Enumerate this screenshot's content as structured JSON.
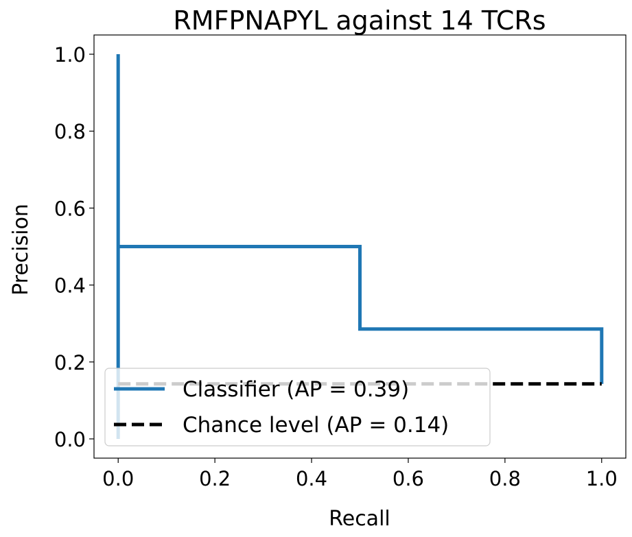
{
  "chart_data": {
    "type": "line",
    "title": "RMFPNAPYL against 14 TCRs",
    "xlabel": "Recall",
    "ylabel": "Precision",
    "xlim": [
      -0.05,
      1.05
    ],
    "ylim": [
      -0.05,
      1.05
    ],
    "xticks": [
      0.0,
      0.2,
      0.4,
      0.6,
      0.8,
      1.0
    ],
    "xtick_labels": [
      "0.0",
      "0.2",
      "0.4",
      "0.6",
      "0.8",
      "1.0"
    ],
    "yticks": [
      0.0,
      0.2,
      0.4,
      0.6,
      0.8,
      1.0
    ],
    "ytick_labels": [
      "0.0",
      "0.2",
      "0.4",
      "0.6",
      "0.8",
      "1.0"
    ],
    "grid": false,
    "legend_position": "lower-left",
    "series": [
      {
        "name": "Classifier (AP = 0.39)",
        "color": "#1f77b4",
        "style": "solid",
        "step": true,
        "x": [
          0.0,
          0.0,
          0.0,
          0.5,
          0.5,
          1.0,
          1.0
        ],
        "y": [
          1.0,
          0.0,
          0.5,
          0.5,
          0.2857,
          0.2857,
          0.1429
        ]
      },
      {
        "name": "Chance level (AP = 0.14)",
        "color": "#000000",
        "style": "dashed",
        "x": [
          0.0,
          1.0
        ],
        "y": [
          0.1429,
          0.1429
        ]
      }
    ]
  }
}
